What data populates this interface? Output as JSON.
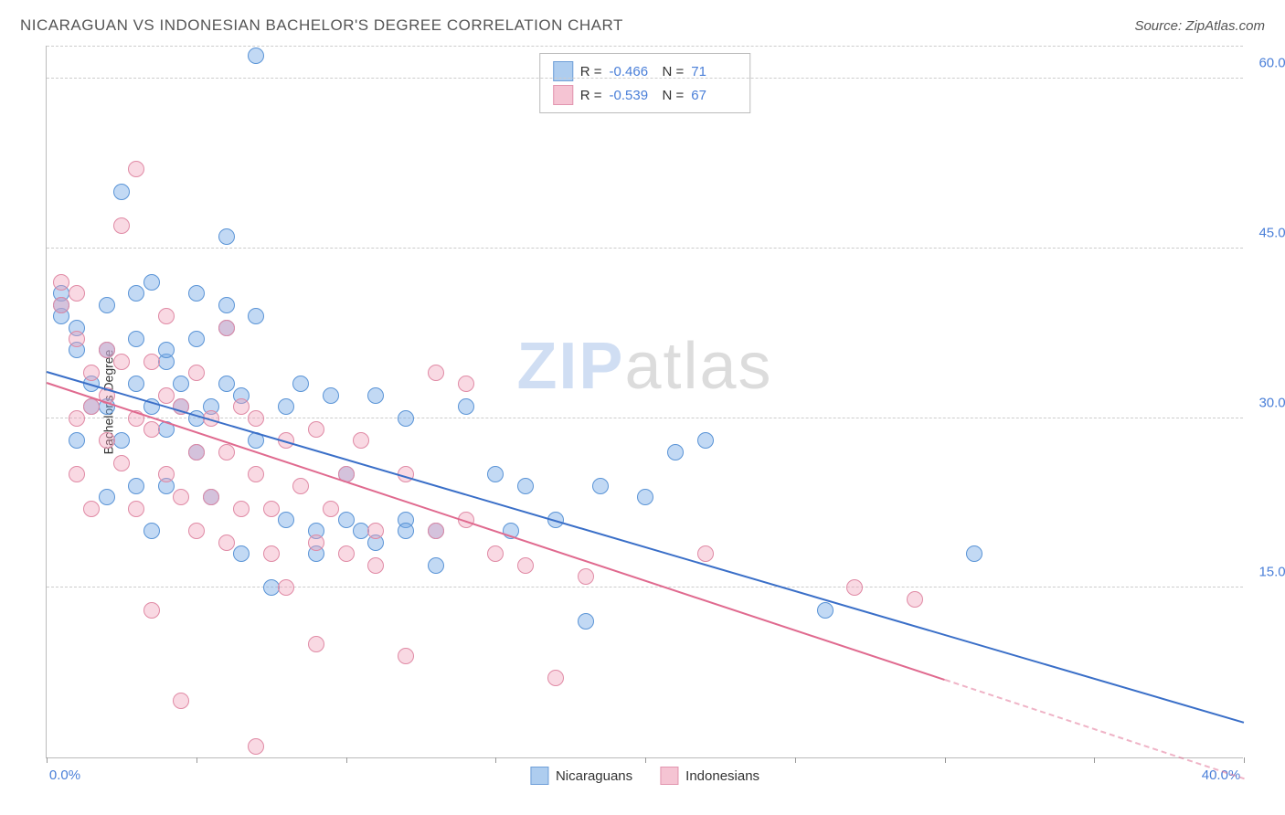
{
  "header": {
    "title": "NICARAGUAN VS INDONESIAN BACHELOR'S DEGREE CORRELATION CHART",
    "source": "Source: ZipAtlas.com"
  },
  "watermark": {
    "part1": "ZIP",
    "part2": "atlas"
  },
  "chart": {
    "type": "scatter",
    "ylabel": "Bachelor's Degree",
    "xlim": [
      0,
      40
    ],
    "ylim": [
      0,
      63
    ],
    "xticks": [
      0,
      5,
      10,
      15,
      20,
      25,
      30,
      35,
      40
    ],
    "xtick_labels": {
      "0": "0.0%",
      "40": "40.0%"
    },
    "yticks": [
      15,
      30,
      45,
      60
    ],
    "ytick_labels": {
      "15": "15.0%",
      "30": "30.0%",
      "45": "45.0%",
      "60": "60.0%"
    },
    "background_color": "#ffffff",
    "grid_color": "#cccccc",
    "axis_color": "#bbbbbb",
    "tick_label_color": "#4a7fd8",
    "marker_radius": 9,
    "series": [
      {
        "name": "Nicaraguans",
        "fill": "rgba(120,170,230,0.45)",
        "stroke": "#5a94d6",
        "swatch_fill": "#aecdef",
        "swatch_stroke": "#6f9fd8",
        "trend": {
          "x1": 0,
          "y1": 34,
          "x2": 40,
          "y2": 3,
          "color": "#3a6fc8",
          "solid_until_x": 40
        },
        "stats": {
          "R": "-0.466",
          "N": "71"
        },
        "points": [
          [
            0.5,
            39
          ],
          [
            0.5,
            41
          ],
          [
            0.5,
            40
          ],
          [
            1,
            38
          ],
          [
            1,
            28
          ],
          [
            1,
            36
          ],
          [
            1.5,
            31
          ],
          [
            1.5,
            33
          ],
          [
            2,
            40
          ],
          [
            2,
            23
          ],
          [
            2,
            31
          ],
          [
            2,
            36
          ],
          [
            2.5,
            50
          ],
          [
            2.5,
            28
          ],
          [
            3,
            37
          ],
          [
            3,
            41
          ],
          [
            3,
            33
          ],
          [
            3,
            24
          ],
          [
            3.5,
            31
          ],
          [
            3.5,
            42
          ],
          [
            3.5,
            20
          ],
          [
            4,
            35
          ],
          [
            4,
            36
          ],
          [
            4,
            29
          ],
          [
            4,
            24
          ],
          [
            4.5,
            31
          ],
          [
            4.5,
            33
          ],
          [
            5,
            30
          ],
          [
            5,
            27
          ],
          [
            5,
            41
          ],
          [
            5,
            37
          ],
          [
            5.5,
            31
          ],
          [
            5.5,
            23
          ],
          [
            6,
            38
          ],
          [
            6,
            33
          ],
          [
            6,
            46
          ],
          [
            6,
            40
          ],
          [
            6.5,
            32
          ],
          [
            6.5,
            18
          ],
          [
            7,
            62
          ],
          [
            7,
            39
          ],
          [
            7,
            28
          ],
          [
            7.5,
            15
          ],
          [
            8,
            31
          ],
          [
            8,
            21
          ],
          [
            8.5,
            33
          ],
          [
            9,
            20
          ],
          [
            9,
            18
          ],
          [
            9.5,
            32
          ],
          [
            10,
            25
          ],
          [
            10,
            21
          ],
          [
            10.5,
            20
          ],
          [
            11,
            19
          ],
          [
            11,
            32
          ],
          [
            12,
            21
          ],
          [
            12,
            20
          ],
          [
            12,
            30
          ],
          [
            13,
            17
          ],
          [
            13,
            20
          ],
          [
            14,
            31
          ],
          [
            15,
            25
          ],
          [
            15.5,
            20
          ],
          [
            16,
            24
          ],
          [
            17,
            21
          ],
          [
            18,
            12
          ],
          [
            18.5,
            24
          ],
          [
            20,
            23
          ],
          [
            21,
            27
          ],
          [
            22,
            28
          ],
          [
            26,
            13
          ],
          [
            31,
            18
          ]
        ]
      },
      {
        "name": "Indonesians",
        "fill": "rgba(240,160,185,0.4)",
        "stroke": "#e08aa5",
        "swatch_fill": "#f5c4d3",
        "swatch_stroke": "#e295af",
        "trend": {
          "x1": 0,
          "y1": 33,
          "x2": 40,
          "y2": -2,
          "color": "#e06a8f",
          "solid_until_x": 30
        },
        "stats": {
          "R": "-0.539",
          "N": "67"
        },
        "points": [
          [
            0.5,
            42
          ],
          [
            0.5,
            40
          ],
          [
            1,
            41
          ],
          [
            1,
            37
          ],
          [
            1,
            30
          ],
          [
            1,
            25
          ],
          [
            1.5,
            34
          ],
          [
            1.5,
            31
          ],
          [
            1.5,
            22
          ],
          [
            2,
            36
          ],
          [
            2,
            32
          ],
          [
            2,
            28
          ],
          [
            2.5,
            47
          ],
          [
            2.5,
            35
          ],
          [
            2.5,
            26
          ],
          [
            3,
            52
          ],
          [
            3,
            30
          ],
          [
            3,
            22
          ],
          [
            3.5,
            35
          ],
          [
            3.5,
            29
          ],
          [
            3.5,
            13
          ],
          [
            4,
            32
          ],
          [
            4,
            25
          ],
          [
            4,
            39
          ],
          [
            4.5,
            31
          ],
          [
            4.5,
            23
          ],
          [
            4.5,
            5
          ],
          [
            5,
            34
          ],
          [
            5,
            27
          ],
          [
            5,
            20
          ],
          [
            5.5,
            30
          ],
          [
            5.5,
            23
          ],
          [
            6,
            38
          ],
          [
            6,
            27
          ],
          [
            6,
            19
          ],
          [
            6.5,
            31
          ],
          [
            6.5,
            22
          ],
          [
            7,
            25
          ],
          [
            7,
            30
          ],
          [
            7,
            1
          ],
          [
            7.5,
            22
          ],
          [
            7.5,
            18
          ],
          [
            8,
            28
          ],
          [
            8,
            15
          ],
          [
            8.5,
            24
          ],
          [
            9,
            29
          ],
          [
            9,
            19
          ],
          [
            9,
            10
          ],
          [
            9.5,
            22
          ],
          [
            10,
            25
          ],
          [
            10,
            18
          ],
          [
            10.5,
            28
          ],
          [
            11,
            20
          ],
          [
            11,
            17
          ],
          [
            12,
            25
          ],
          [
            12,
            9
          ],
          [
            13,
            34
          ],
          [
            13,
            20
          ],
          [
            14,
            21
          ],
          [
            14,
            33
          ],
          [
            15,
            18
          ],
          [
            16,
            17
          ],
          [
            17,
            7
          ],
          [
            18,
            16
          ],
          [
            22,
            18
          ],
          [
            27,
            15
          ],
          [
            29,
            14
          ]
        ]
      }
    ],
    "bottom_legend": [
      "Nicaraguans",
      "Indonesians"
    ],
    "stats_labels": {
      "R": "R =",
      "N": "N ="
    }
  }
}
